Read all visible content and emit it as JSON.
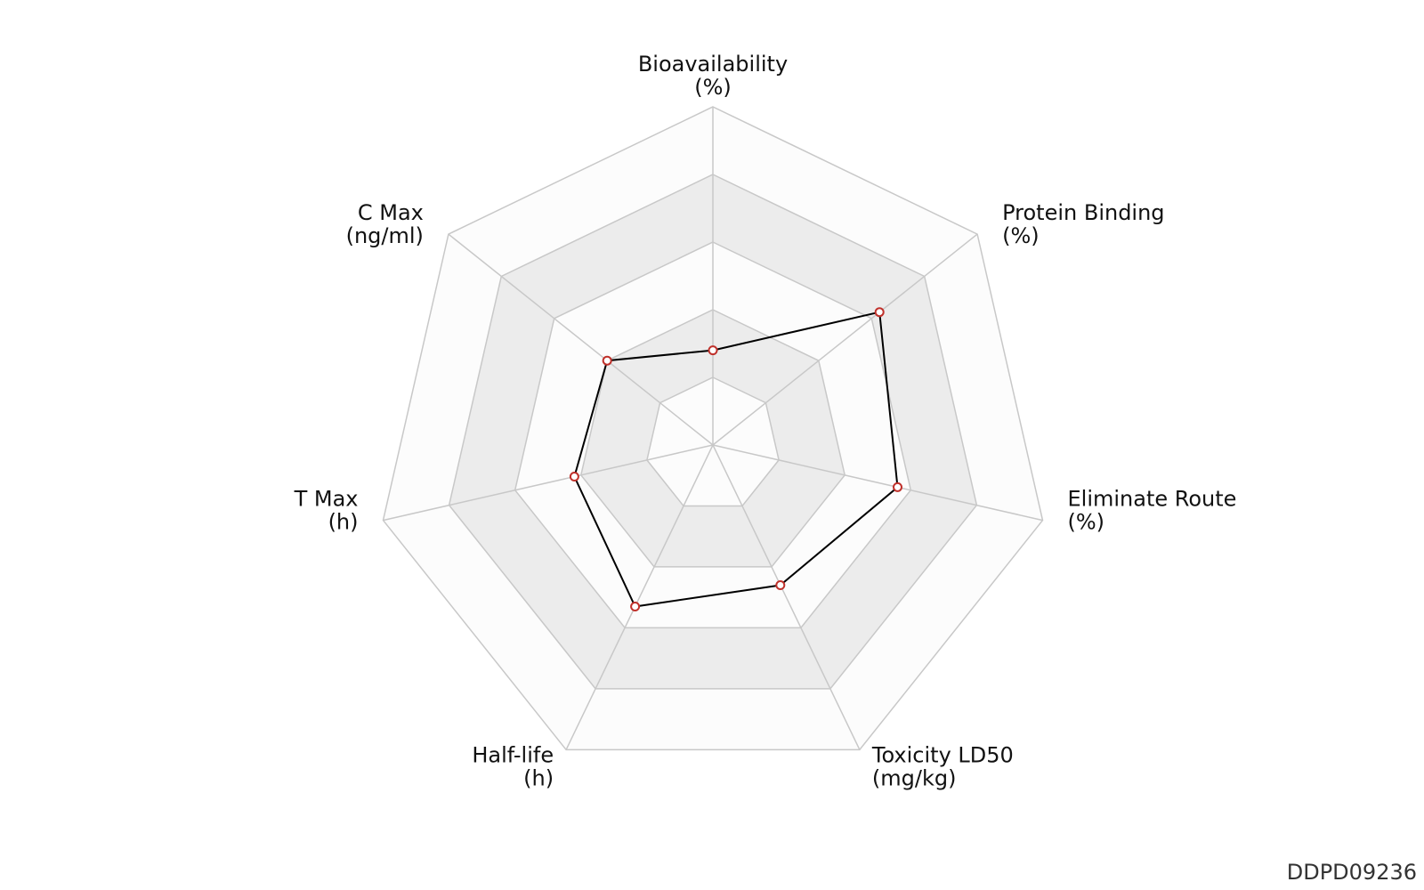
{
  "chart_data": {
    "type": "radar",
    "axes": [
      {
        "label_line1": "Bioavailability",
        "label_line2": "(%)"
      },
      {
        "label_line1": "Protein Binding",
        "label_line2": "(%)"
      },
      {
        "label_line1": "Eliminate Route",
        "label_line2": "(%)"
      },
      {
        "label_line1": "Toxicity LD50",
        "label_line2": "(mg/kg)"
      },
      {
        "label_line1": "Half-life",
        "label_line2": "(h)"
      },
      {
        "label_line1": "T Max",
        "label_line2": "(h)"
      },
      {
        "label_line1": "C Max",
        "label_line2": "(ng/ml)"
      }
    ],
    "rings": 5,
    "range": [
      0,
      1
    ],
    "values": [
      0.28,
      0.63,
      0.56,
      0.46,
      0.53,
      0.42,
      0.4
    ],
    "colors": {
      "band_light": "#fcfcfc",
      "band_dark": "#ececec",
      "grid_line": "#c8c8c8",
      "series_line": "#000000",
      "marker_stroke": "#c0312b",
      "marker_fill": "#ffffff"
    }
  },
  "footer": {
    "id": "DDPD09236"
  }
}
